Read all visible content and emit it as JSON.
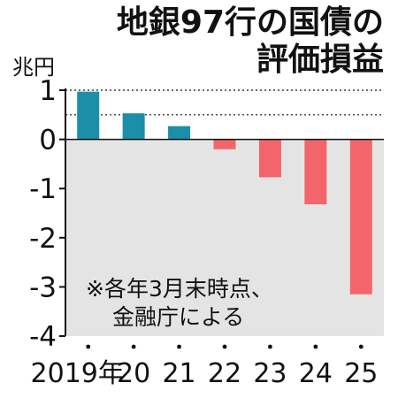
{
  "title_lines": [
    "地銀97行の国債の",
    "評価損益"
  ],
  "unit": "兆円",
  "note_lines": [
    "※各年3月末時点、",
    "金融庁による"
  ],
  "colors": {
    "positive": "#1b8fa8",
    "negative": "#f2666b",
    "negative_region": "#e4e4e4",
    "axis": "#111111"
  },
  "chart_data": {
    "type": "bar",
    "title": "地銀97行の国債の評価損益",
    "ylabel": "兆円",
    "xlabel": "",
    "categories": [
      "2019年",
      "20",
      "21",
      "22",
      "23",
      "24",
      "25"
    ],
    "values": [
      0.97,
      0.53,
      0.27,
      -0.2,
      -0.77,
      -1.32,
      -3.15
    ],
    "ylim": [
      -4,
      1
    ],
    "yticks": [
      1,
      0,
      -1,
      -2,
      -3,
      -4
    ],
    "ytick_labels": [
      "1",
      "0",
      "-1",
      "-2",
      "-3",
      "-4"
    ],
    "reference_lines": [
      1,
      0.5
    ],
    "legend": "none"
  }
}
